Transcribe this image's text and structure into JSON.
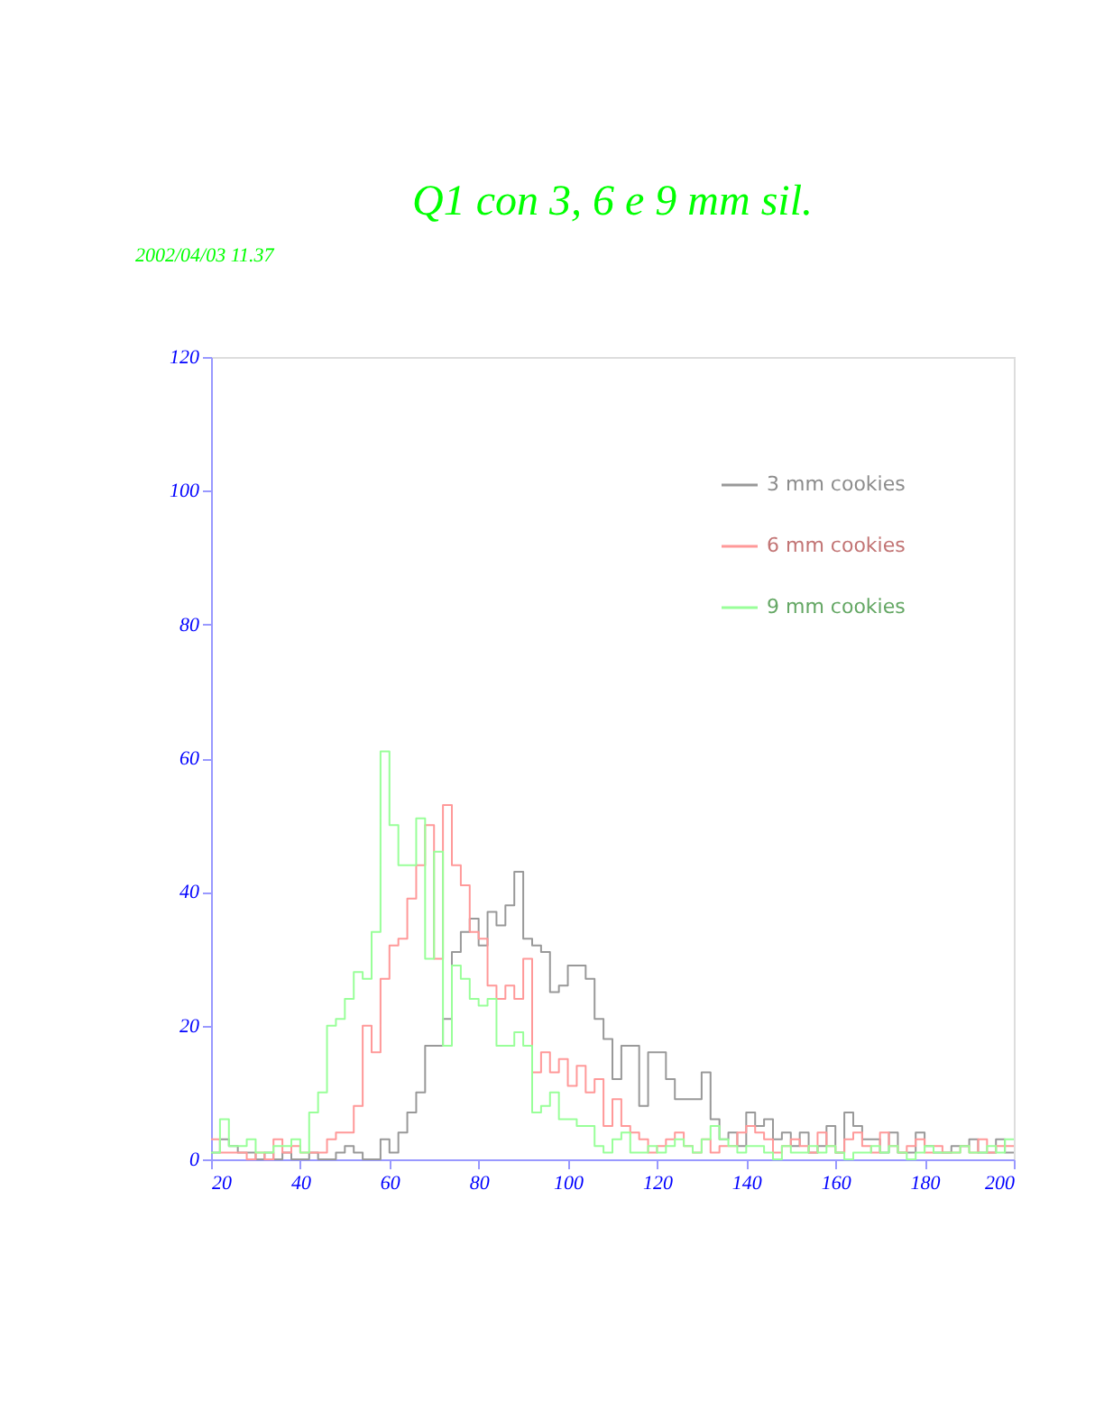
{
  "chart_data": {
    "type": "histogram",
    "title": "Q1  con 3, 6 e 9 mm sil.",
    "annotations": [
      "2002/04/03  11.37"
    ],
    "bins": [
      20,
      22,
      24,
      26,
      28,
      30,
      32,
      34,
      36,
      38,
      40,
      42,
      44,
      46,
      48,
      50,
      52,
      54,
      56,
      58,
      60,
      62,
      64,
      66,
      68,
      70,
      72,
      74,
      76,
      78,
      80,
      82,
      84,
      86,
      88,
      90,
      92,
      94,
      96,
      98,
      100,
      102,
      104,
      106,
      108,
      110,
      112,
      114,
      116,
      118,
      120,
      122,
      124,
      126,
      128,
      130,
      132,
      134,
      136,
      138,
      140,
      142,
      144,
      146,
      148,
      150,
      152,
      154,
      156,
      158,
      160,
      162,
      164,
      166,
      168,
      170,
      172,
      174,
      176,
      178,
      180,
      182,
      184,
      186,
      188,
      190,
      192,
      194,
      196,
      198,
      200
    ],
    "series": [
      {
        "name": "3 mm cookies",
        "color": "#999999",
        "values": [
          1,
          3,
          2,
          1,
          1,
          0,
          1,
          0,
          1,
          0,
          0,
          1,
          0,
          0,
          1,
          2,
          1,
          0,
          0,
          3,
          1,
          4,
          7,
          10,
          17,
          17,
          21,
          31,
          34,
          36,
          32,
          37,
          35,
          38,
          43,
          33,
          32,
          31,
          25,
          26,
          29,
          29,
          27,
          21,
          18,
          12,
          17,
          17,
          8,
          16,
          16,
          12,
          9,
          9,
          9,
          13,
          6,
          3,
          4,
          2,
          7,
          5,
          6,
          3,
          4,
          2,
          4,
          1,
          2,
          5,
          1,
          7,
          5,
          3,
          3,
          1,
          4,
          1,
          1,
          4,
          2,
          1,
          1,
          2,
          2,
          3,
          1,
          1,
          3,
          1
        ]
      },
      {
        "name": "6 mm cookies",
        "color": "#ff9999",
        "values": [
          3,
          1,
          1,
          1,
          0,
          1,
          0,
          3,
          1,
          2,
          1,
          1,
          1,
          3,
          4,
          4,
          8,
          20,
          16,
          27,
          32,
          33,
          39,
          44,
          50,
          30,
          53,
          44,
          41,
          34,
          33,
          26,
          24,
          26,
          24,
          30,
          13,
          16,
          13,
          15,
          11,
          14,
          10,
          12,
          5,
          9,
          5,
          4,
          3,
          1,
          2,
          3,
          4,
          2,
          1,
          3,
          1,
          2,
          2,
          4,
          5,
          4,
          3,
          1,
          2,
          3,
          2,
          1,
          4,
          2,
          1,
          3,
          4,
          2,
          1,
          4,
          2,
          1,
          2,
          3,
          1,
          2,
          1,
          1,
          2,
          1,
          3,
          1,
          2,
          2
        ]
      },
      {
        "name": "9 mm cookies",
        "color": "#99ff99",
        "values": [
          1,
          6,
          2,
          2,
          3,
          1,
          1,
          2,
          2,
          3,
          1,
          7,
          10,
          20,
          21,
          24,
          28,
          27,
          34,
          61,
          50,
          44,
          44,
          51,
          30,
          46,
          17,
          29,
          27,
          24,
          23,
          24,
          17,
          17,
          19,
          17,
          7,
          8,
          10,
          6,
          6,
          5,
          5,
          2,
          1,
          3,
          4,
          1,
          1,
          2,
          1,
          2,
          3,
          2,
          1,
          3,
          5,
          3,
          2,
          1,
          2,
          2,
          1,
          0,
          2,
          1,
          1,
          2,
          1,
          2,
          1,
          0,
          1,
          1,
          2,
          1,
          2,
          1,
          0,
          1,
          2,
          1,
          1,
          1,
          2,
          1,
          1,
          2,
          1,
          3
        ]
      }
    ],
    "xlim": [
      20,
      200
    ],
    "xticks": [
      20,
      40,
      60,
      80,
      100,
      120,
      140,
      160,
      180,
      200
    ],
    "ylim": [
      0,
      120
    ],
    "yticks": [
      0,
      20,
      40,
      60,
      80,
      100,
      120
    ],
    "legend": "top right",
    "grid": false
  }
}
